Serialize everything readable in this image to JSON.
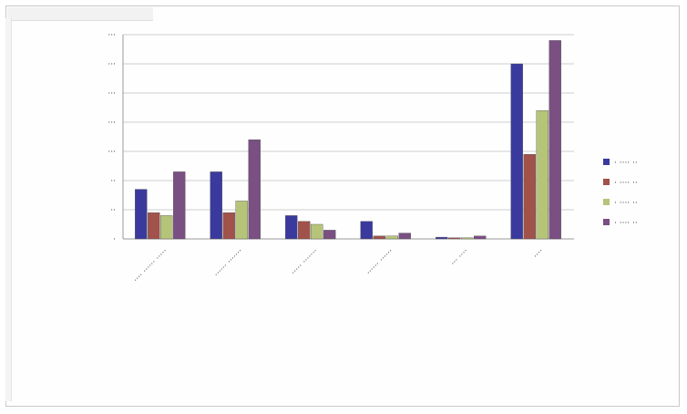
{
  "chart_data": {
    "type": "bar",
    "categories": [
      "···· ······ ·····",
      "······ ·······",
      "····· ·······",
      "······ ······",
      "··· ····",
      "····"
    ],
    "series": [
      {
        "name": "· ···· ··",
        "color": "#3a3a9e",
        "values": [
          85,
          115,
          40,
          30,
          3,
          300
        ]
      },
      {
        "name": "· ···· ··",
        "color": "#a0524b",
        "values": [
          45,
          45,
          30,
          5,
          2,
          145
        ]
      },
      {
        "name": "· ···· ··",
        "color": "#b6c47a",
        "values": [
          40,
          65,
          25,
          5,
          2,
          220
        ]
      },
      {
        "name": "· ···· ··",
        "color": "#7a4f82",
        "values": [
          115,
          170,
          15,
          10,
          5,
          340
        ]
      }
    ],
    "y_ticks": [
      "···",
      "···",
      "···",
      "···",
      "···",
      "··",
      "··",
      "·"
    ],
    "ylim": [
      0,
      350
    ],
    "grid": true,
    "legend_position": "right",
    "title": "",
    "xlabel": "",
    "ylabel": ""
  }
}
